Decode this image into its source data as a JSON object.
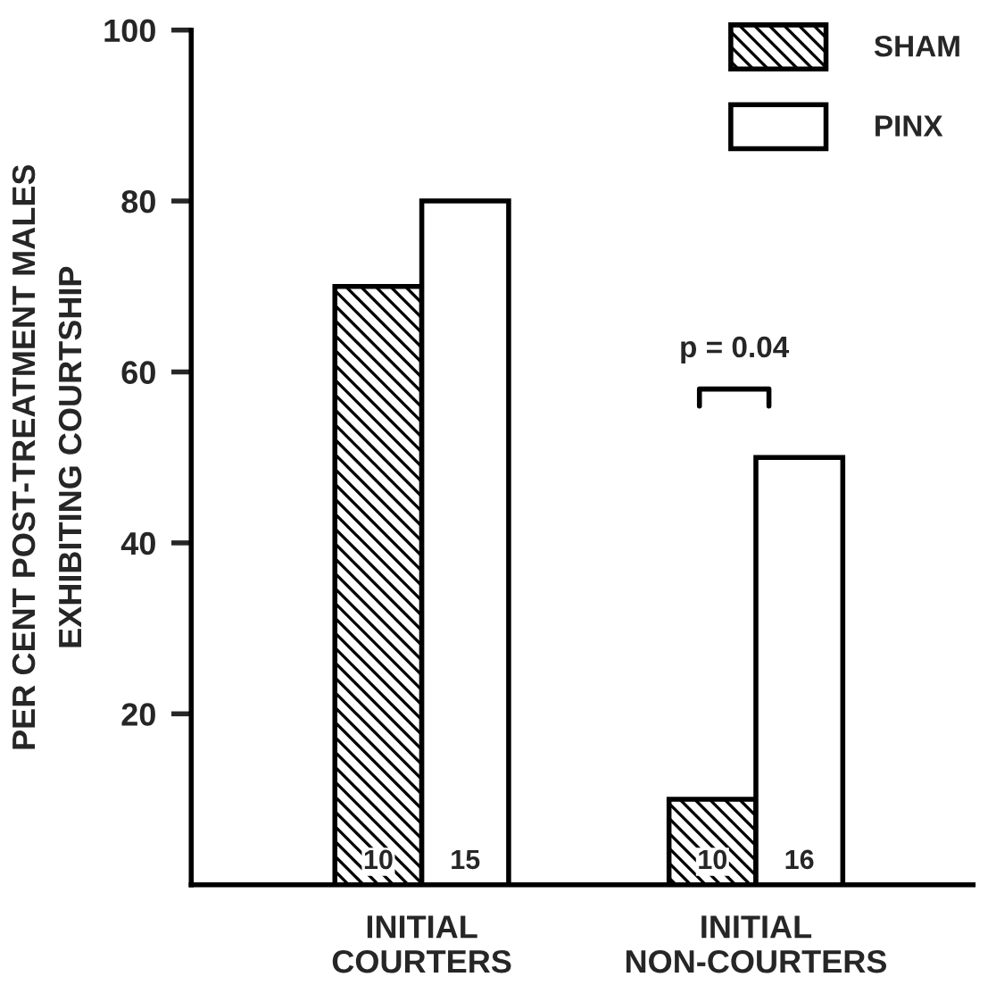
{
  "chart_data": {
    "type": "bar",
    "categories": [
      "INITIAL\nCOURTERS",
      "INITIAL\nNON-COURTERS"
    ],
    "series": [
      {
        "name": "SHAM",
        "color": "#000000",
        "values": [
          70,
          10
        ]
      },
      {
        "name": "PINX",
        "color": "#ffffff",
        "values": [
          80,
          50
        ]
      }
    ],
    "ylabel": "PER CENT POST-TREATMENT MALES\nEXHIBITING COURTSHIP",
    "ylim": [
      0,
      100
    ],
    "yticks": [
      20,
      40,
      60,
      80,
      100
    ],
    "annotations": [
      {
        "text": "10",
        "x": "INITIAL\nCOURTERS",
        "y": 0
      },
      {
        "text": "15",
        "x": "INITIAL\nCOURTERS",
        "y": 0
      },
      {
        "text": "10",
        "x": "INITIAL\nNON-COURTERS",
        "y": 0
      },
      {
        "text": "16",
        "x": "INITIAL\nNON-COURTERS",
        "y": 0
      },
      "p = 0.04"
    ],
    "legend": "top right",
    "grid": false
  }
}
